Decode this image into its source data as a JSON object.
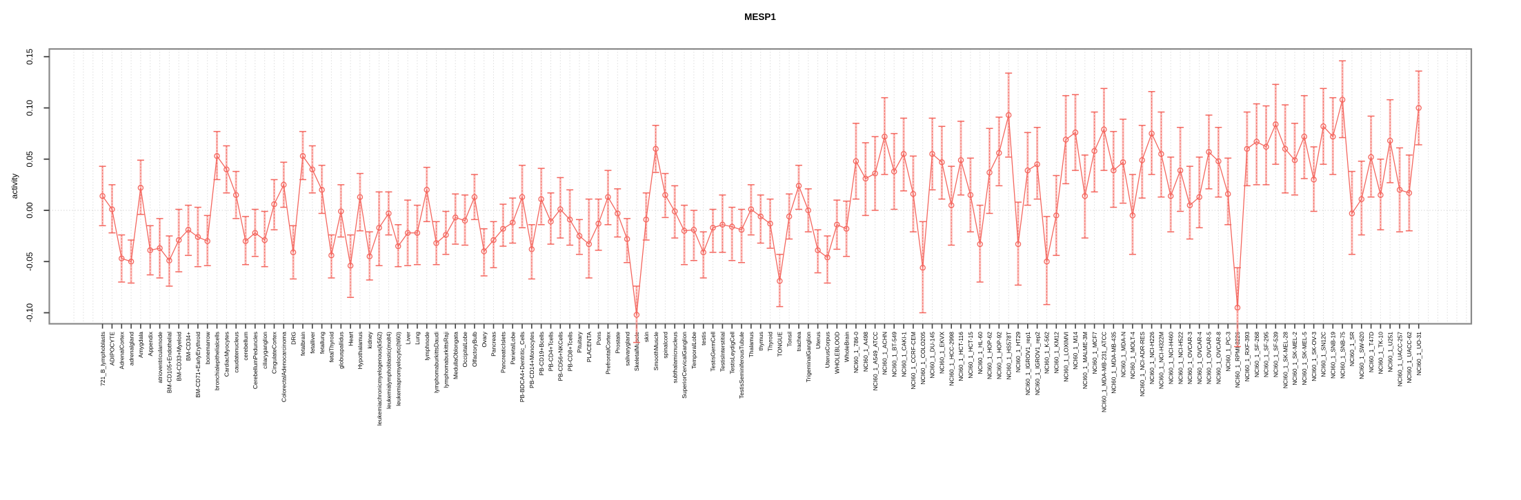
{
  "page": {
    "background": "#ffffff"
  },
  "chart_data": {
    "type": "line",
    "title": "MESP1",
    "ylabel": "activity",
    "xlabel": "",
    "ylim": [
      -0.11,
      0.157
    ],
    "yticks": [
      0.15,
      0.1,
      0.05,
      0.0,
      -0.05,
      -0.1
    ],
    "legend": "none",
    "grid": {
      "vertical": "dotted-per-category",
      "horizontal": "dotted-at-zero"
    },
    "error_bars": true,
    "marker": "open-circle",
    "colors": {
      "series": "#f4665e",
      "series_light": "#fb958f",
      "grid": "#dcdcdc",
      "zero_line": "#d4d4d4",
      "border": "#898989",
      "tick": "#3f3f3f",
      "text": "#000000"
    },
    "categories": [
      "721_B_lymphoblasts",
      "ADIPOCYTE",
      "AdrenalCortex",
      "adrenalgland",
      "Amygdala",
      "Appendix",
      "atrioventricularnode",
      "BM-CD105+Endothelial",
      "BM-CD33+Myeloid",
      "BM-CD34+",
      "BM-CD71+EarlyErythroid",
      "bonemarrow",
      "bronchialepithelialcells",
      "CardiacMyocytes",
      "caudatenucleus",
      "cerebellum",
      "CerebellumPeduncles",
      "ciliaryganglion",
      "CingulateCortex",
      "ColorectalAdenocarcinoma",
      "DRG",
      "fetalbrain",
      "fetalliver",
      "fetallung",
      "fetalThyroid",
      "globuspallidus",
      "Heart",
      "Hypothalamus",
      "kidney",
      "leukemiachronicmyelogenous(k562)",
      "leukemialymphoblastic(molt4)",
      "leukemiapromyelocytic(hl60)",
      "Liver",
      "Lung",
      "lymphnode",
      "lymphomaburkittsDaudi",
      "lymphomaburkittsRaji",
      "MedullaOblongata",
      "OccipitalLobe",
      "OlfactoryBulb",
      "Ovary",
      "Pancreas",
      "PancreaticIslets",
      "ParietalLobe",
      "PB-BDCA4+Dentritic_Cells",
      "PB-CD14+Monocytes",
      "PB-CD19+Bcells",
      "PB-CD4+Tcells",
      "PB-CD56+NKCells",
      "PB-CD8+Tcells",
      "Pituitary",
      "PLACENTA",
      "Pons",
      "PrefrontalCortex",
      "Prostate",
      "salivarygland",
      "SkeletalMuscle",
      "skin",
      "SmoothMuscle",
      "spinalcord",
      "subthalamicnucleus",
      "SuperiorCervicalGanglion",
      "TemporalLobe",
      "testis",
      "TestisGermCell",
      "TestisInterstitial",
      "TestisLeydigCell",
      "TestisSeminiferousTubule",
      "Thalamus",
      "thymus",
      "Thyroid",
      "TONGUE",
      "Tonsil",
      "trachea",
      "TrigeminalGanglion",
      "Uterus",
      "UterusCorpus",
      "WHOLEBLOOD",
      "WholeBrain",
      "NCI60_1_786-0",
      "NCI60_1_A498",
      "NCI60_1_A549_ATCC",
      "NCI60_1_ACHN",
      "NCI60_1_BT-549",
      "NCI60_1_CAKI-1",
      "NCI60_1_CCRF-CEM",
      "NCI60_1_COLO205",
      "NCI60_1_DU-145",
      "NCI60_1_EKVX",
      "NCI60_1_HCC-2998",
      "NCI60_1_HCT-116",
      "NCI60_1_HCT-15",
      "NCI60_1_HL-60",
      "NCI60_1_HOP-62",
      "NCI60_1_HOP-92",
      "NCI60_1_HS578T",
      "NCI60_1_HT29",
      "NCI60_1_IGROV1_rep1",
      "NCI60_1_IGROV1_rep2",
      "NCI60_1_K-562",
      "NCI60_1_KM12",
      "NCI60_1_LOXIMVI",
      "NCI60_1_M14",
      "NCI60_1_MALME-3M",
      "NCI60_1_MCF7",
      "NCI60_1_MDA-MB-231_ATCC",
      "NCI60_1_MDA-MB-435",
      "NCI60_1_MDA-N",
      "NCI60_1_MOLT-4",
      "NCI60_1_NCI-ADR-RES",
      "NCI60_1_NCI-H226",
      "NCI60_1_NCI-H322M",
      "NCI60_1_NCI-H460",
      "NCI60_1_NCI-H522",
      "NCI60_1_OVCAR-3",
      "NCI60_1_OVCAR-4",
      "NCI60_1_OVCAR-5",
      "NCI60_1_OVCAR-8",
      "NCI60_1_PC-3",
      "NCI60_1_RPMI-8226",
      "NCI60_1_RXF-393",
      "NCI60_1_SF-268",
      "NCI60_1_SF-295",
      "NCI60_1_SF-539",
      "NCI60_1_SK-MEL-28",
      "NCI60_1_SK-MEL-2",
      "NCI60_1_SK-MEL-5",
      "NCI60_1_SK-OV-3",
      "NCI60_1_SN12C",
      "NCI60_1_SNB-19",
      "NCI60_1_SNB-75",
      "NCI60_1_SR",
      "NCI60_1_SW-620",
      "NCI60_1_T47D",
      "NCI60_1_TK-10",
      "NCI60_1_U251",
      "NCI60_1_UACC-257",
      "NCI60_1_UACC-62",
      "NCI60_1_UO-31"
    ],
    "values": [
      0.014,
      0.001,
      -0.047,
      -0.05,
      0.022,
      -0.039,
      -0.037,
      -0.049,
      -0.029,
      -0.019,
      -0.026,
      -0.03,
      0.053,
      0.04,
      0.015,
      -0.03,
      -0.022,
      -0.029,
      0.006,
      0.025,
      -0.041,
      0.053,
      0.04,
      0.02,
      -0.044,
      -0.001,
      -0.054,
      0.013,
      -0.045,
      -0.017,
      -0.003,
      -0.035,
      -0.022,
      -0.022,
      0.02,
      -0.032,
      -0.024,
      -0.007,
      -0.01,
      0.013,
      -0.04,
      -0.029,
      -0.018,
      -0.012,
      0.013,
      -0.038,
      0.011,
      -0.011,
      0.001,
      -0.009,
      -0.025,
      -0.033,
      -0.013,
      0.013,
      -0.003,
      -0.028,
      -0.102,
      -0.009,
      0.06,
      0.015,
      -0.001,
      -0.02,
      -0.019,
      -0.041,
      -0.017,
      -0.014,
      -0.016,
      -0.019,
      0.001,
      -0.006,
      -0.013,
      -0.069,
      -0.006,
      0.024,
      0.0,
      -0.039,
      -0.046,
      -0.014,
      -0.018,
      0.048,
      0.031,
      0.036,
      0.072,
      0.038,
      0.055,
      0.016,
      -0.056,
      0.055,
      0.047,
      0.005,
      0.049,
      0.015,
      -0.033,
      0.037,
      0.056,
      0.093,
      -0.033,
      0.039,
      0.045,
      -0.05,
      -0.005,
      0.069,
      0.076,
      0.014,
      0.058,
      0.079,
      0.039,
      0.047,
      -0.005,
      0.049,
      0.075,
      0.055,
      0.014,
      0.039,
      0.005,
      0.013,
      0.057,
      0.048,
      0.016,
      -0.095,
      0.06,
      0.067,
      0.062,
      0.084,
      0.06,
      0.049,
      0.072,
      0.03,
      0.082,
      0.072,
      0.108,
      -0.003,
      0.011,
      0.052,
      0.015,
      0.068,
      0.02,
      0.017,
      0.1
    ],
    "ci_low": [
      -0.015,
      -0.022,
      -0.07,
      -0.071,
      -0.004,
      -0.063,
      -0.066,
      -0.074,
      -0.06,
      -0.044,
      -0.055,
      -0.054,
      0.03,
      0.017,
      -0.008,
      -0.053,
      -0.045,
      -0.055,
      -0.019,
      0.003,
      -0.067,
      0.03,
      0.017,
      -0.003,
      -0.066,
      -0.026,
      -0.085,
      -0.02,
      -0.068,
      -0.054,
      -0.024,
      -0.055,
      -0.054,
      -0.053,
      -0.011,
      -0.053,
      -0.043,
      -0.033,
      -0.034,
      -0.009,
      -0.064,
      -0.056,
      -0.035,
      -0.032,
      -0.017,
      -0.067,
      -0.014,
      -0.033,
      -0.027,
      -0.034,
      -0.043,
      -0.066,
      -0.039,
      -0.014,
      -0.026,
      -0.051,
      -0.129,
      -0.029,
      0.037,
      -0.007,
      -0.027,
      -0.053,
      -0.049,
      -0.066,
      -0.041,
      -0.041,
      -0.049,
      -0.051,
      -0.024,
      -0.032,
      -0.037,
      -0.094,
      -0.028,
      0.001,
      -0.021,
      -0.061,
      -0.071,
      -0.038,
      -0.045,
      0.011,
      -0.005,
      0.0,
      0.035,
      0.001,
      0.019,
      -0.021,
      -0.1,
      0.02,
      0.011,
      -0.034,
      0.015,
      -0.021,
      -0.07,
      -0.003,
      0.024,
      0.052,
      -0.073,
      0.005,
      0.011,
      -0.092,
      -0.044,
      0.026,
      0.039,
      -0.027,
      0.018,
      0.039,
      0.003,
      0.007,
      -0.043,
      0.012,
      0.035,
      0.013,
      -0.021,
      -0.001,
      -0.028,
      -0.017,
      0.021,
      0.013,
      -0.014,
      -0.133,
      0.024,
      0.025,
      0.025,
      0.045,
      0.017,
      0.015,
      0.031,
      -0.001,
      0.045,
      0.035,
      0.071,
      -0.043,
      -0.024,
      0.013,
      -0.019,
      0.027,
      -0.021,
      -0.02,
      0.064
    ],
    "ci_high": [
      0.043,
      0.025,
      -0.024,
      -0.029,
      0.049,
      -0.015,
      -0.008,
      -0.025,
      0.001,
      0.005,
      0.003,
      -0.005,
      0.077,
      0.063,
      0.038,
      -0.006,
      0.001,
      -0.001,
      0.03,
      0.047,
      -0.015,
      0.077,
      0.063,
      0.044,
      -0.024,
      0.025,
      -0.024,
      0.036,
      -0.021,
      0.018,
      0.018,
      -0.014,
      0.01,
      0.005,
      0.042,
      -0.011,
      -0.001,
      0.016,
      0.015,
      0.035,
      -0.018,
      -0.011,
      0.006,
      0.012,
      0.044,
      -0.014,
      0.041,
      0.017,
      0.032,
      0.02,
      -0.009,
      0.011,
      0.011,
      0.039,
      0.021,
      -0.008,
      -0.074,
      0.017,
      0.083,
      0.036,
      0.024,
      0.005,
      0.0,
      -0.021,
      0.001,
      0.015,
      0.003,
      0.001,
      0.025,
      0.015,
      0.011,
      -0.043,
      0.016,
      0.044,
      0.021,
      -0.019,
      -0.025,
      0.01,
      0.009,
      0.085,
      0.066,
      0.072,
      0.11,
      0.075,
      0.09,
      0.053,
      -0.011,
      0.09,
      0.082,
      0.043,
      0.087,
      0.051,
      0.005,
      0.08,
      0.091,
      0.134,
      0.008,
      0.076,
      0.081,
      -0.006,
      0.034,
      0.112,
      0.113,
      0.054,
      0.096,
      0.119,
      0.077,
      0.089,
      0.035,
      0.083,
      0.116,
      0.096,
      0.052,
      0.081,
      0.043,
      0.052,
      0.093,
      0.081,
      0.051,
      -0.056,
      0.096,
      0.104,
      0.102,
      0.123,
      0.103,
      0.085,
      0.112,
      0.062,
      0.119,
      0.11,
      0.146,
      0.038,
      0.048,
      0.092,
      0.05,
      0.108,
      0.061,
      0.054,
      0.136
    ]
  }
}
